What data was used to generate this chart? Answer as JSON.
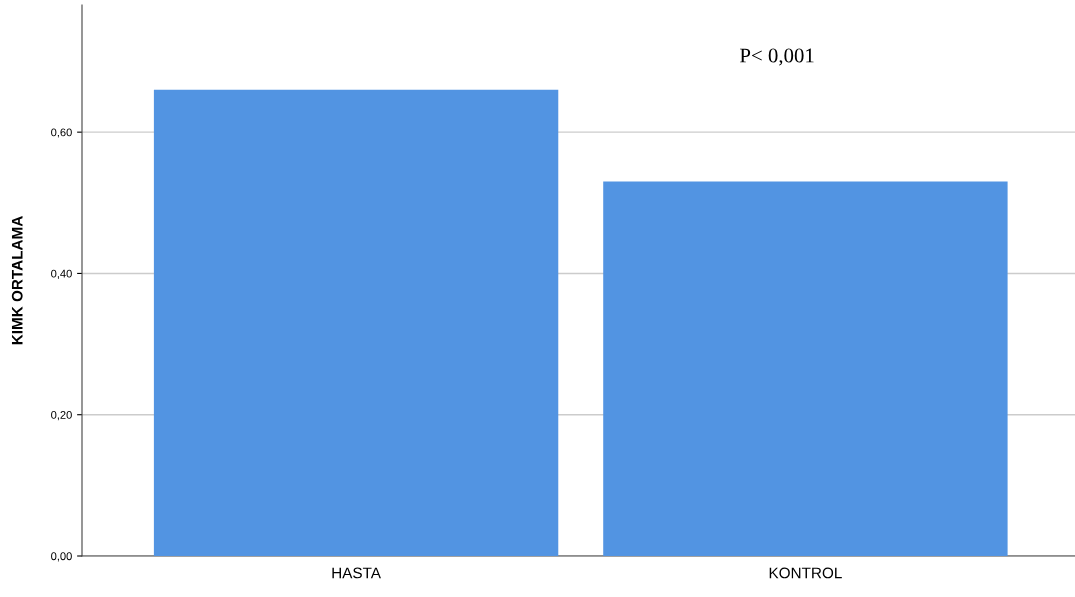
{
  "chart_data": {
    "type": "bar",
    "ylabel": "KIMK ORTALAMA",
    "categories": [
      "HASTA",
      "KONTROL"
    ],
    "values": [
      0.66,
      0.53
    ],
    "color": "#5294e2",
    "ylim": [
      0,
      0.78
    ],
    "yticks": [
      {
        "value": 0,
        "label": "0,00"
      },
      {
        "value": 0.2,
        "label": "0,20"
      },
      {
        "value": 0.4,
        "label": "0,40"
      },
      {
        "value": 0.6,
        "label": "0,60"
      }
    ],
    "grid": "y",
    "annotations": [
      "P< 0,001"
    ]
  }
}
